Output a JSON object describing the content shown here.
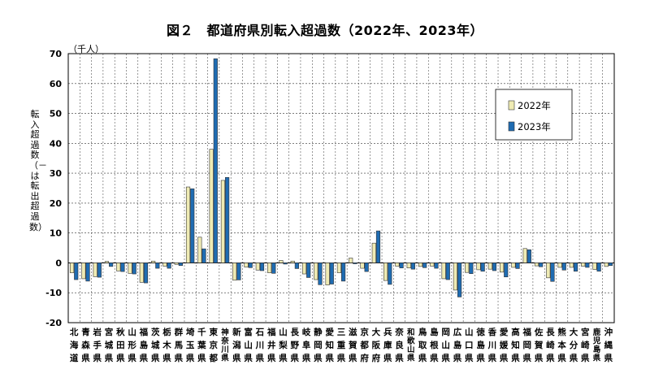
{
  "chart_data": {
    "type": "bar",
    "title": "図２　都道府県別転入超過数（2022年、2023年）",
    "unit_label": "（千人）",
    "ylabel": "転入超過数（－は転出超過数）",
    "ylim": [
      -20,
      70
    ],
    "yticks": [
      70,
      60,
      50,
      40,
      30,
      20,
      10,
      0,
      -10,
      -20
    ],
    "grid": true,
    "legend_position": "right",
    "categories": [
      "北海道",
      "青森県",
      "岩手県",
      "宮城県",
      "秋田県",
      "山形県",
      "福島県",
      "茨城県",
      "栃木県",
      "群馬県",
      "埼玉県",
      "千葉県",
      "東京都",
      "神奈川県",
      "新潟県",
      "富山県",
      "石川県",
      "福井県",
      "山梨県",
      "長野県",
      "岐阜県",
      "静岡県",
      "愛知県",
      "三重県",
      "滋賀県",
      "京都府",
      "大阪府",
      "兵庫県",
      "奈良県",
      "和歌山県",
      "鳥取県",
      "島根県",
      "岡山県",
      "広島県",
      "山口県",
      "徳島県",
      "香川県",
      "愛媛県",
      "高知県",
      "福岡県",
      "佐賀県",
      "長崎県",
      "熊本県",
      "大分県",
      "宮崎県",
      "鹿児島県",
      "沖縄県"
    ],
    "series": [
      {
        "name": "2022年",
        "color": "#EFEBB4",
        "values": [
          -3.3,
          -5.3,
          -4.6,
          0.5,
          -2.7,
          -3.5,
          -6.5,
          0.6,
          -1.1,
          -0.5,
          25.4,
          8.6,
          38.0,
          27.6,
          -5.8,
          -1.4,
          -2.4,
          -3.3,
          0.8,
          0.6,
          -3.7,
          -5.6,
          -7.4,
          -3.3,
          1.6,
          -1.8,
          6.6,
          -5.9,
          -1.1,
          -1.7,
          -1.2,
          -1.1,
          -5.3,
          -9.1,
          -3.2,
          -2.3,
          -2.1,
          -3.1,
          -1.5,
          4.8,
          -1.0,
          -5.0,
          -1.5,
          -1.5,
          -1.1,
          -2.2,
          -1.2
        ]
      },
      {
        "name": "2023年",
        "color": "#1F6CB2",
        "values": [
          -5.6,
          -6.1,
          -4.8,
          -1.2,
          -2.9,
          -3.7,
          -6.7,
          -1.8,
          -1.8,
          -0.9,
          24.8,
          4.7,
          68.3,
          28.6,
          -5.7,
          -1.6,
          -2.6,
          -3.5,
          -0.4,
          -1.9,
          -4.9,
          -7.3,
          -7.1,
          -6.1,
          -0.3,
          -2.9,
          10.7,
          -7.2,
          -1.7,
          -2.1,
          -1.6,
          -1.8,
          -5.6,
          -11.4,
          -3.6,
          -2.8,
          -2.6,
          -4.7,
          -1.9,
          4.4,
          -1.3,
          -6.2,
          -2.4,
          -2.8,
          -1.5,
          -2.8,
          -0.9
        ]
      }
    ]
  }
}
